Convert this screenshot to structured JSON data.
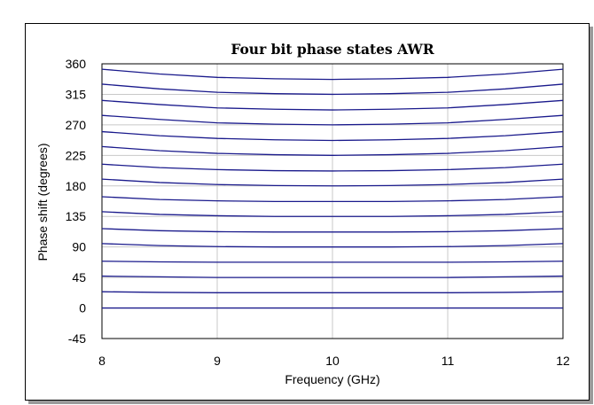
{
  "chart_data": {
    "type": "line",
    "title": "Four bit phase states AWR",
    "xlabel": "Frequency (GHz)",
    "ylabel": "Phase shift (degrees)",
    "xlim": [
      8,
      12
    ],
    "ylim": [
      -45,
      360
    ],
    "xticks": [
      8,
      9,
      10,
      11,
      12
    ],
    "yticks": [
      -45,
      0,
      45,
      90,
      135,
      180,
      225,
      270,
      315,
      360
    ],
    "grid": true,
    "legend": "none",
    "line_color": "#1a1a8c",
    "x": [
      8,
      8.5,
      9,
      9.5,
      10,
      10.5,
      11,
      11.5,
      12
    ],
    "series": [
      {
        "values": [
          0,
          0,
          0,
          0,
          0,
          0,
          0,
          0,
          0
        ]
      },
      {
        "values": [
          24,
          23,
          22.5,
          22.5,
          22.5,
          22.5,
          22.5,
          23,
          24
        ]
      },
      {
        "values": [
          47,
          46,
          45,
          45,
          45,
          45,
          45,
          46,
          47
        ]
      },
      {
        "values": [
          69,
          68,
          67.5,
          67.5,
          67.5,
          67.5,
          67.5,
          68,
          69
        ]
      },
      {
        "values": [
          95,
          92,
          90.5,
          90,
          90,
          90,
          90.5,
          92,
          95
        ]
      },
      {
        "values": [
          117,
          114,
          112.5,
          112,
          112,
          112,
          112.5,
          114,
          117
        ]
      },
      {
        "values": [
          142,
          138,
          136,
          135,
          135,
          135,
          136,
          138,
          142
        ]
      },
      {
        "values": [
          164,
          160,
          158,
          157,
          157,
          157,
          158,
          160,
          164
        ]
      },
      {
        "values": [
          190,
          185,
          182,
          180.5,
          180,
          180.5,
          182,
          185,
          190
        ]
      },
      {
        "values": [
          212,
          207,
          204,
          202.5,
          202,
          202.5,
          204,
          207,
          212
        ]
      },
      {
        "values": [
          238,
          232,
          228,
          226,
          225,
          226,
          228,
          232,
          238
        ]
      },
      {
        "values": [
          260,
          254,
          250,
          248,
          247,
          248,
          250,
          254,
          260
        ]
      },
      {
        "values": [
          284,
          278,
          273,
          271,
          270,
          271,
          273,
          278,
          284
        ]
      },
      {
        "values": [
          306,
          300,
          295,
          293,
          292,
          293,
          295,
          300,
          306
        ]
      },
      {
        "values": [
          330,
          323,
          318,
          316,
          315,
          316,
          318,
          323,
          330
        ]
      },
      {
        "values": [
          352,
          345,
          340,
          338,
          337,
          338,
          340,
          345,
          352
        ]
      }
    ]
  }
}
